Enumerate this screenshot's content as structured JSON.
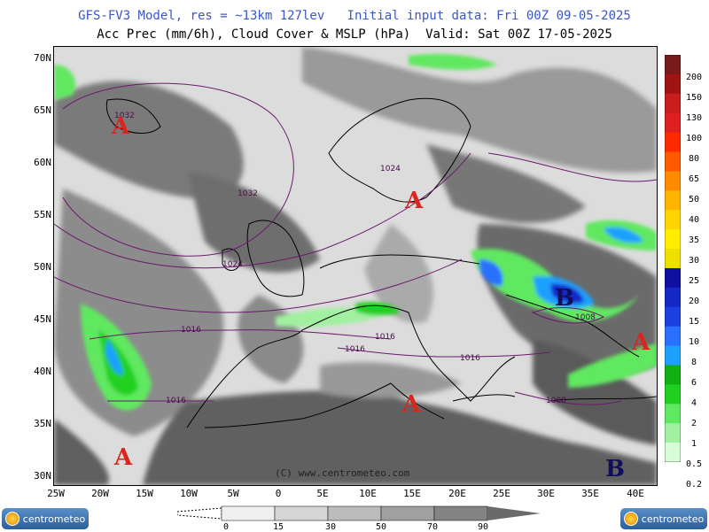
{
  "header": {
    "line1": "GFS-FV3 Model, res = ~13km 127lev   Initial input data: Fri 00Z 09-05-2025",
    "line2": "Acc Prec (mm/6h), Cloud Cover & MSLP (hPa)  Valid: Sat 00Z 17-05-2025",
    "line1_color": "#3a57c8",
    "line2_color": "#000000"
  },
  "axes": {
    "lat_ticks": [
      "70N",
      "65N",
      "60N",
      "55N",
      "50N",
      "45N",
      "40N",
      "35N",
      "30N"
    ],
    "lon_ticks": [
      "25W",
      "20W",
      "15W",
      "10W",
      "5W",
      "0",
      "5E",
      "10E",
      "15E",
      "20E",
      "25E",
      "30E",
      "35E",
      "40E"
    ]
  },
  "precip_legend": {
    "labels": [
      "200",
      "150",
      "130",
      "100",
      "80",
      "65",
      "50",
      "40",
      "35",
      "30",
      "25",
      "20",
      "15",
      "10",
      "8",
      "6",
      "4",
      "2",
      "1",
      "0.5",
      "0.2"
    ],
    "colors": [
      "#7a1a1a",
      "#a01414",
      "#c81e1e",
      "#e02020",
      "#ff2a00",
      "#ff5a00",
      "#ff8a00",
      "#ffb400",
      "#ffd400",
      "#ffee00",
      "#f0e000",
      "#1010a0",
      "#1428c8",
      "#1c40e0",
      "#2a70ff",
      "#1ea0ff",
      "#10b010",
      "#20d020",
      "#60e860",
      "#a0f0a0",
      "#d8fcd8"
    ]
  },
  "cloud_legend": {
    "labels": [
      "0",
      "15",
      "30",
      "50",
      "70",
      "90"
    ]
  },
  "map": {
    "high_label": "A",
    "low_label": "B",
    "high_color": "#d8261e",
    "low_color": "#10105a",
    "isobars": [
      "1032",
      "1032",
      "1024",
      "1024",
      "1016",
      "1016",
      "1016",
      "1016",
      "1016",
      "1008",
      "1008"
    ],
    "copyright": "(C) www.centrometeo.com"
  },
  "logos": {
    "left": "centrometeo",
    "right": "centrometeo"
  }
}
